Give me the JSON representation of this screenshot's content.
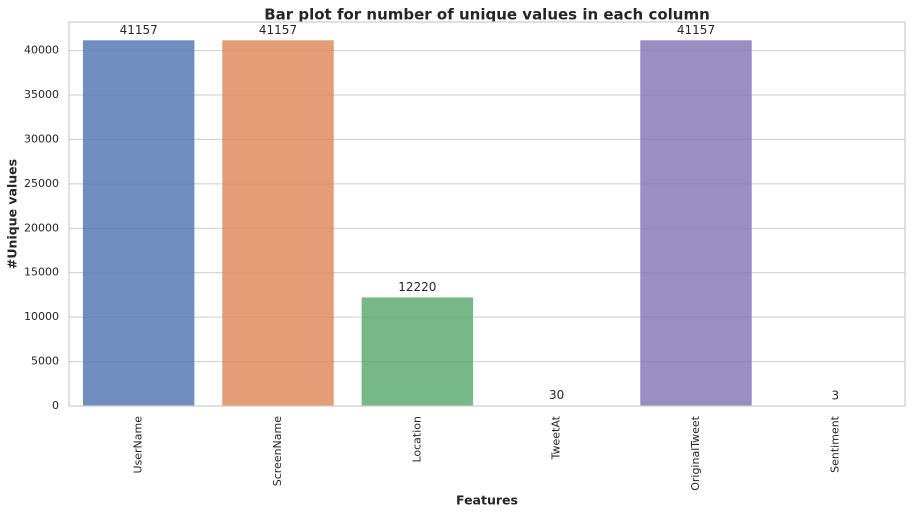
{
  "chart_data": {
    "type": "bar",
    "title": "Bar plot for number of unique values in each column",
    "x_label": "Features",
    "y_label": "#Unique values",
    "categories": [
      "UserName",
      "ScreenName",
      "Location",
      "TweetAt",
      "OriginalTweet",
      "Sentiment"
    ],
    "values": [
      41157,
      41157,
      12220,
      30,
      41157,
      3
    ],
    "colors": [
      "#4c72b0",
      "#dd8452",
      "#55a868",
      "#c44e52",
      "#8172b3",
      "#937860"
    ],
    "ylim": [
      0,
      43215
    ],
    "yticks": [
      0,
      5000,
      10000,
      15000,
      20000,
      25000,
      30000,
      35000,
      40000
    ],
    "grid": true
  }
}
